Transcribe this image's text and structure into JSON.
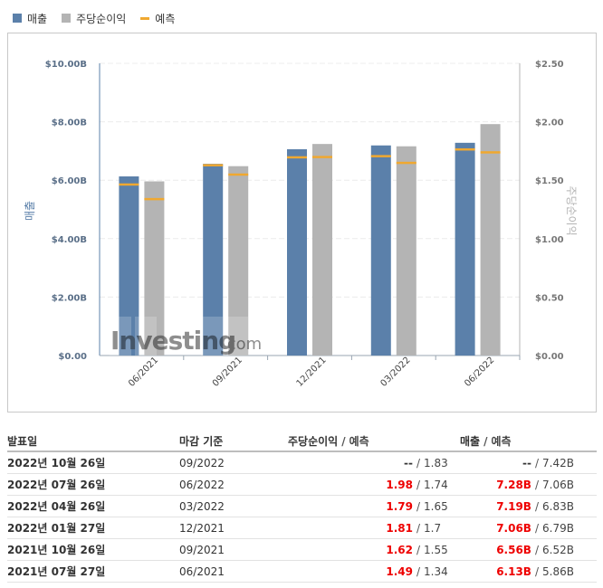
{
  "legend": [
    {
      "label": "매출",
      "color": "#5b80aa",
      "kind": "box"
    },
    {
      "label": "주당순이익",
      "color": "#b4b4b4",
      "kind": "box"
    },
    {
      "label": "예측",
      "color": "#f0a830",
      "kind": "line"
    }
  ],
  "chart_data": {
    "type": "bar",
    "categories": [
      "06/2021",
      "09/2021",
      "12/2021",
      "03/2022",
      "06/2022"
    ],
    "series": [
      {
        "name": "매출",
        "axis": "left",
        "color": "#5b80aa",
        "values": [
          6.13,
          6.56,
          7.06,
          7.19,
          7.28
        ],
        "forecast": [
          5.86,
          6.52,
          6.79,
          6.83,
          7.06
        ]
      },
      {
        "name": "주당순이익",
        "axis": "right",
        "color": "#b4b4b4",
        "values": [
          1.49,
          1.62,
          1.81,
          1.79,
          1.98
        ],
        "forecast": [
          1.34,
          1.55,
          1.7,
          1.65,
          1.74
        ]
      }
    ],
    "y_left": {
      "label": "매출",
      "ticks": [
        "$0.00",
        "$2.00B",
        "$4.00B",
        "$6.00B",
        "$8.00B",
        "$10.00B"
      ],
      "range": [
        0,
        10
      ]
    },
    "y_right": {
      "label": "주당순이익",
      "ticks": [
        "$0.00",
        "$0.50",
        "$1.00",
        "$1.50",
        "$2.00",
        "$2.50"
      ],
      "range": [
        0,
        2.5
      ]
    },
    "forecast_color": "#f0a830",
    "watermark": {
      "brand": "Investing",
      "suffix": ".com"
    }
  },
  "table": {
    "headers": {
      "date": "발표일",
      "period": "마감 기준",
      "eps": "주당순이익",
      "eps_sep": "/",
      "eps_fc": "예측",
      "rev": "매출",
      "rev_sep": "/",
      "rev_fc": "예측"
    },
    "rows": [
      {
        "date": "2022년 10월 26일",
        "period": "09/2022",
        "eps": "--",
        "eps_fc": "1.83",
        "rev": "--",
        "rev_fc": "7.42B"
      },
      {
        "date": "2022년 07월 26일",
        "period": "06/2022",
        "eps": "1.98",
        "eps_fc": "1.74",
        "rev": "7.28B",
        "rev_fc": "7.06B"
      },
      {
        "date": "2022년 04월 26일",
        "period": "03/2022",
        "eps": "1.79",
        "eps_fc": "1.65",
        "rev": "7.19B",
        "rev_fc": "6.83B"
      },
      {
        "date": "2022년 01월 27일",
        "period": "12/2021",
        "eps": "1.81",
        "eps_fc": "1.7",
        "rev": "7.06B",
        "rev_fc": "6.79B"
      },
      {
        "date": "2021년 10월 26일",
        "period": "09/2021",
        "eps": "1.62",
        "eps_fc": "1.55",
        "rev": "6.56B",
        "rev_fc": "6.52B"
      },
      {
        "date": "2021년 07월 27일",
        "period": "06/2021",
        "eps": "1.49",
        "eps_fc": "1.34",
        "rev": "6.13B",
        "rev_fc": "5.86B"
      }
    ]
  }
}
